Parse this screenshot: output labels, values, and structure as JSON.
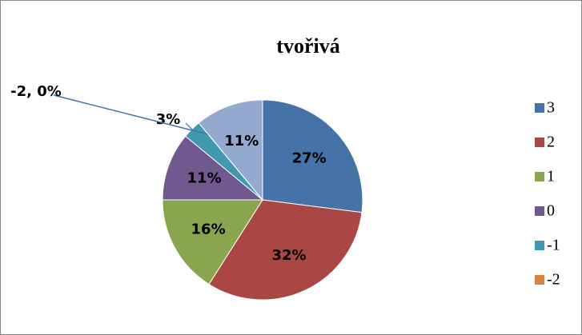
{
  "chart_data": {
    "type": "pie",
    "title": "tvořivá",
    "categories": [
      "3",
      "2",
      "1",
      "0",
      "-1",
      "-2",
      null
    ],
    "values": [
      27,
      32,
      16,
      11,
      3,
      0,
      11
    ],
    "value_labels": [
      "27%",
      "32%",
      "16%",
      "11%",
      "3%",
      "-2, 0%",
      "11%"
    ],
    "colors": [
      "#4572a7",
      "#aa4643",
      "#89a54e",
      "#71588f",
      "#4198af",
      "#db843d",
      "#93a9cf"
    ],
    "legend": "right"
  }
}
